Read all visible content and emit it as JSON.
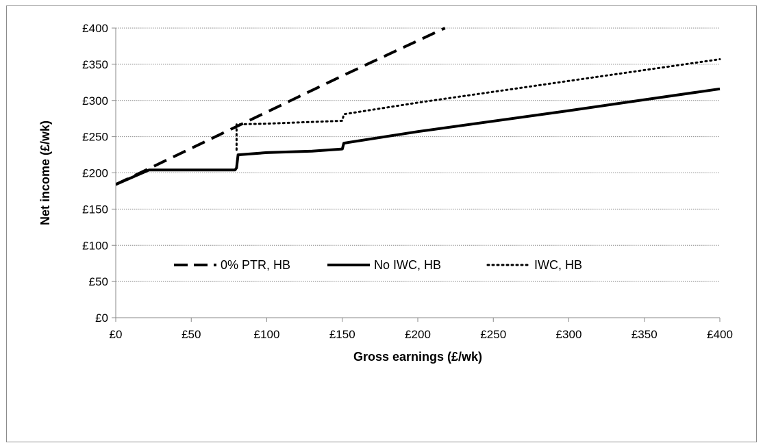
{
  "chart_data": {
    "type": "line",
    "title": "",
    "xlabel": "Gross earnings (£/wk)",
    "ylabel": "Net income (£/wk)",
    "xlim": [
      0,
      400
    ],
    "ylim": [
      0,
      400
    ],
    "x_ticks": [
      "£0",
      "£50",
      "£100",
      "£150",
      "£200",
      "£250",
      "£300",
      "£350",
      "£400"
    ],
    "y_ticks": [
      "£0",
      "£50",
      "£100",
      "£150",
      "£200",
      "£250",
      "£300",
      "£350",
      "£400"
    ],
    "grid": "horizontal dotted",
    "legend_position": "inside-bottom",
    "series": [
      {
        "name": "0% PTR, HB",
        "style": "dashed",
        "color": "#000000",
        "points": [
          [
            0,
            184
          ],
          [
            22,
            206
          ],
          [
            80,
            264
          ],
          [
            151,
            335
          ],
          [
            218,
            400
          ]
        ]
      },
      {
        "name": "No IWC, HB",
        "style": "solid",
        "color": "#000000",
        "points": [
          [
            0,
            184
          ],
          [
            22,
            204
          ],
          [
            79,
            204
          ],
          [
            80,
            207
          ],
          [
            81,
            225
          ],
          [
            100,
            228
          ],
          [
            130,
            230
          ],
          [
            150,
            233
          ],
          [
            151,
            241
          ],
          [
            200,
            257
          ],
          [
            300,
            286
          ],
          [
            400,
            316
          ]
        ]
      },
      {
        "name": "IWC, HB",
        "style": "dotted",
        "color": "#000000",
        "points": [
          [
            80,
            232
          ],
          [
            80,
            267
          ],
          [
            100,
            268
          ],
          [
            150,
            272
          ],
          [
            151,
            281
          ],
          [
            200,
            297
          ],
          [
            300,
            327
          ],
          [
            400,
            357
          ]
        ]
      }
    ]
  }
}
